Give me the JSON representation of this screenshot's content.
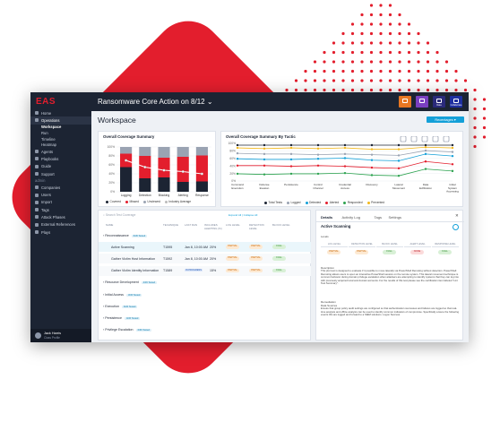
{
  "app": {
    "logo": "EAS",
    "page_heading": "Ransomware Core Action on 8/12",
    "workspace_title": "Workspace",
    "recent_button": "Recentages",
    "top_buttons": [
      {
        "label": "",
        "color": "#e87722",
        "icon": "document-icon"
      },
      {
        "label": "",
        "color": "#7a3fc0",
        "icon": "check-icon"
      },
      {
        "label": "Data",
        "color": "#2a2a7a",
        "icon": "chart-icon"
      },
      {
        "label": "Collaborate",
        "color": "#1e2fa0",
        "icon": "people-icon"
      }
    ]
  },
  "sidebar": {
    "top_items": [
      {
        "label": "Home",
        "active": false
      },
      {
        "label": "Operations",
        "active": true
      }
    ],
    "sub_items": [
      {
        "label": "Workspace",
        "active": true
      },
      {
        "label": "Run",
        "active": false
      },
      {
        "label": "Timeline",
        "active": false
      },
      {
        "label": "Heatmap",
        "active": false
      }
    ],
    "mid_items": [
      "Agents",
      "Playbooks",
      "Guide",
      "Support"
    ],
    "section_label": "admin",
    "admin_items": [
      "Companies",
      "Users",
      "Import",
      "Tags",
      "Attack Phases",
      "External References",
      "Plays"
    ],
    "user": {
      "name": "Jack Harris",
      "role": "Class Profile"
    }
  },
  "coverage_summary": {
    "title": "Overall Coverage Summary",
    "legend": [
      {
        "label": "Covered",
        "color": "#1c2433"
      },
      {
        "label": "Missed",
        "color": "#e31e2d"
      },
      {
        "label": "Unviewed",
        "color": "#9aa3b2"
      },
      {
        "label": "Industry Average",
        "color": "#bbbbbb"
      }
    ]
  },
  "coverage_by_tactic": {
    "title": "Overall Coverage Summary By Tactic",
    "legend": [
      {
        "label": "Total Tests",
        "color": "#1c2433"
      },
      {
        "label": "Logged",
        "color": "#9aa3b2"
      },
      {
        "label": "Detected",
        "color": "#14a0d8"
      },
      {
        "label": "Alerted",
        "color": "#e31e2d"
      },
      {
        "label": "Responded",
        "color": "#2ca24f"
      },
      {
        "label": "Prevented",
        "color": "#f2b81c"
      }
    ]
  },
  "table": {
    "search_placeholder": "Search Test Coverage",
    "meta": "Expand All | Collapse All",
    "headers": [
      "NAME",
      "TECHNIQUE",
      "LAST RAN",
      "INCLUDES ALERTING (%)",
      "LOG LEVEL",
      "DETECTION LEVEL",
      "BLOCK LEVEL"
    ],
    "rows": [
      {
        "name": "Reconnaissance",
        "tag": "6/36 Tested",
        "kind": "group"
      },
      {
        "name": "Active Scanning",
        "technique": "T1595",
        "last": "Jan 8, 10:00 AM",
        "pct": "20%",
        "log": "PARTIAL",
        "det": "PARTIAL",
        "blk": "FULL",
        "kind": "hl"
      },
      {
        "name": "Gather Victim Host Information",
        "technique": "T1592",
        "last": "Jan 8, 10:00 AM",
        "pct": "20%",
        "log": "PARTIAL",
        "det": "PARTIAL",
        "blk": "FULL",
        "kind": "sub"
      },
      {
        "name": "Gather Victim Identity Information",
        "technique": "T1589",
        "last": "IN PROGRESS",
        "pct": "15%",
        "log": "PARTIAL",
        "det": "PARTIAL",
        "blk": "FULL",
        "kind": "sub"
      },
      {
        "name": "Resource Development",
        "tag": "4/36 Tested",
        "kind": "group"
      },
      {
        "name": "Initial Access",
        "tag": "3/36 Tested",
        "kind": "group"
      },
      {
        "name": "Execution",
        "tag": "6/36 Tested",
        "kind": "group"
      },
      {
        "name": "Persistence",
        "tag": "4/36 Tested",
        "kind": "group"
      },
      {
        "name": "Privilege Escalation",
        "tag": "6/36 Tested",
        "kind": "group"
      }
    ]
  },
  "details": {
    "tabs": [
      "Details",
      "Activity Log",
      "Tags",
      "Settings"
    ],
    "title": "Active Scanning",
    "levels_label": "Levels",
    "levels": [
      "LOG LEVEL",
      "DETECTION LEVEL",
      "BLOCK LEVEL",
      "ALERT LEVEL",
      "RESPONSE LEVEL"
    ],
    "level_values": [
      "PARTIAL",
      "PARTIAL",
      "FULL",
      "NONE",
      "FULL"
    ],
    "description_label": "Description",
    "description": "This plot test is designed to evaluate if it possible to move laterally via PowerShell Remoting without detection. PowerShell Remoting allows users to open an interactive PowerShell session on the remote system. This lateral movement technique is common behavior during domain privilege escalation when attackers are attempting to identify systems that they can log into with previously acquired local and domain accounts. For the results of this test please see the certification item labeled \"Lint Test Summary\".",
    "remediation_label": "Remediation",
    "remediation_sub": "Data Sources",
    "remediation": "Ensure that group policy audit settings are configured so that authentication successes and failures are logged so that real-time analysis and offline analysis can be used to identify common indicators of compromise. Specifically ensure the following events IDs are logged and forward to a SIEM solutions. Logon Success"
  },
  "chart_data": [
    {
      "type": "bar",
      "title": "Overall Coverage Summary",
      "categories": [
        "Logging",
        "Detection",
        "Blocking",
        "Alerting",
        "Response"
      ],
      "series": [
        {
          "name": "Covered",
          "values": [
            55,
            30,
            32,
            22,
            23
          ]
        },
        {
          "name": "Missed",
          "values": [
            30,
            50,
            44,
            56,
            58
          ]
        },
        {
          "name": "Unviewed",
          "values": [
            15,
            20,
            24,
            22,
            19
          ]
        }
      ],
      "line": {
        "name": "Industry Average",
        "values": [
          70,
          55,
          48,
          45,
          40
        ]
      },
      "ylim": [
        0,
        100
      ],
      "yticks": [
        "0%",
        "20%",
        "40%",
        "60%",
        "80%",
        "100%"
      ]
    },
    {
      "type": "line",
      "title": "Overall Coverage Summary By Tactic",
      "categories": [
        "Command Execution",
        "Defense Evasion",
        "Persistence",
        "Control Channel",
        "Credential Access",
        "Discovery",
        "Lateral Movement",
        "Data Exfiltration",
        "Initial System Accessing"
      ],
      "series": [
        {
          "name": "Total Tests",
          "values": [
            100,
            100,
            100,
            100,
            100,
            100,
            100,
            100,
            100
          ]
        },
        {
          "name": "Logged",
          "values": [
            88,
            87,
            87,
            86,
            87,
            86,
            85,
            92,
            90
          ]
        },
        {
          "name": "Detected",
          "values": [
            80,
            79,
            79,
            80,
            81,
            78,
            77,
            87,
            84
          ]
        },
        {
          "name": "Alerted",
          "values": [
            70,
            70,
            69,
            70,
            69,
            67,
            66,
            76,
            72
          ]
        },
        {
          "name": "Responded",
          "values": [
            58,
            57,
            58,
            58,
            59,
            56,
            55,
            65,
            62
          ]
        },
        {
          "name": "Prevented",
          "values": [
            96,
            95,
            96,
            95,
            96,
            94,
            94,
            97,
            96
          ]
        }
      ],
      "ylim": [
        0,
        100
      ],
      "yticks": [
        "0%",
        "20%",
        "40%",
        "60%",
        "80%",
        "100%"
      ]
    }
  ]
}
